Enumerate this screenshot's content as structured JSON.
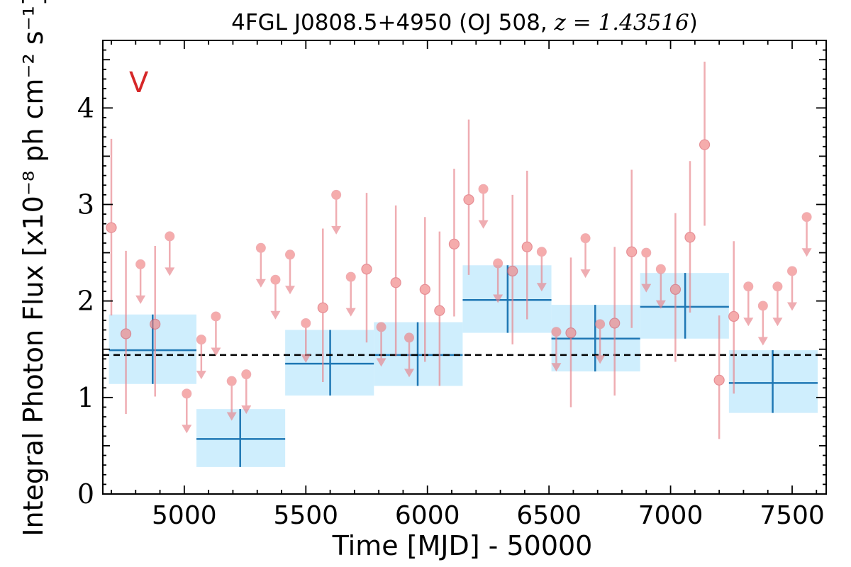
{
  "chart_data": {
    "type": "scatter",
    "title_prefix": "4FGL J0808.5+4950 (OJ 508, ",
    "title_math": "z = 1.43516",
    "title_suffix": ")",
    "xlabel": "Time [MJD] - 50000",
    "ylabel": "Integral Photon Flux [x10⁻⁸ ph cm⁻² s⁻¹]",
    "band_label": "V",
    "xlim": [
      4665,
      7640
    ],
    "ylim": [
      0,
      4.7
    ],
    "x_ticks": [
      5000,
      5500,
      6000,
      6500,
      7000,
      7500
    ],
    "y_ticks": [
      0,
      1,
      2,
      3,
      4
    ],
    "mean_flux": 1.44,
    "colors": {
      "points": "#e8828a",
      "point_fill": "#f08080",
      "binned_line": "#1f77b4",
      "binned_fill": "#cfeefd",
      "mean_line": "#000000",
      "band_label": "#d62728"
    },
    "detections": [
      {
        "x": 4700,
        "y": 2.76,
        "lo": 1.85,
        "hi": 3.68
      },
      {
        "x": 4760,
        "y": 1.66,
        "lo": 0.83,
        "hi": 2.52
      },
      {
        "x": 4880,
        "y": 1.76,
        "lo": 1.01,
        "hi": 2.57
      },
      {
        "x": 5570,
        "y": 1.93,
        "lo": 1.16,
        "hi": 2.75
      },
      {
        "x": 5750,
        "y": 2.33,
        "lo": 1.57,
        "hi": 3.12
      },
      {
        "x": 5870,
        "y": 2.19,
        "lo": 1.43,
        "hi": 2.99
      },
      {
        "x": 5990,
        "y": 2.12,
        "lo": 1.37,
        "hi": 2.87
      },
      {
        "x": 6050,
        "y": 1.9,
        "lo": 1.12,
        "hi": 2.72
      },
      {
        "x": 6110,
        "y": 2.59,
        "lo": 1.84,
        "hi": 3.37
      },
      {
        "x": 6170,
        "y": 3.05,
        "lo": 2.27,
        "hi": 3.88
      },
      {
        "x": 6350,
        "y": 2.31,
        "lo": 1.55,
        "hi": 3.1
      },
      {
        "x": 6410,
        "y": 2.56,
        "lo": 1.81,
        "hi": 3.35
      },
      {
        "x": 6590,
        "y": 1.67,
        "lo": 0.9,
        "hi": 2.45
      },
      {
        "x": 6770,
        "y": 1.77,
        "lo": 1.02,
        "hi": 2.56
      },
      {
        "x": 6840,
        "y": 2.51,
        "lo": 1.72,
        "hi": 3.36
      },
      {
        "x": 7020,
        "y": 2.12,
        "lo": 1.37,
        "hi": 2.91
      },
      {
        "x": 7080,
        "y": 2.66,
        "lo": 1.88,
        "hi": 3.45
      },
      {
        "x": 7140,
        "y": 3.62,
        "lo": 2.78,
        "hi": 4.48
      },
      {
        "x": 7200,
        "y": 1.18,
        "lo": 0.57,
        "hi": 1.85
      },
      {
        "x": 7260,
        "y": 1.84,
        "lo": 1.04,
        "hi": 2.62
      }
    ],
    "upper_limits": [
      {
        "x": 4820,
        "y": 2.38
      },
      {
        "x": 4940,
        "y": 2.67
      },
      {
        "x": 5010,
        "y": 1.04
      },
      {
        "x": 5070,
        "y": 1.6
      },
      {
        "x": 5130,
        "y": 1.84
      },
      {
        "x": 5195,
        "y": 1.17
      },
      {
        "x": 5255,
        "y": 1.24
      },
      {
        "x": 5315,
        "y": 2.55
      },
      {
        "x": 5375,
        "y": 2.22
      },
      {
        "x": 5435,
        "y": 2.48
      },
      {
        "x": 5500,
        "y": 1.77
      },
      {
        "x": 5625,
        "y": 3.1
      },
      {
        "x": 5685,
        "y": 2.25
      },
      {
        "x": 5810,
        "y": 1.73
      },
      {
        "x": 5925,
        "y": 1.62
      },
      {
        "x": 6230,
        "y": 3.16
      },
      {
        "x": 6290,
        "y": 2.39
      },
      {
        "x": 6470,
        "y": 2.51
      },
      {
        "x": 6530,
        "y": 1.68
      },
      {
        "x": 6710,
        "y": 1.76
      },
      {
        "x": 6650,
        "y": 2.65
      },
      {
        "x": 6900,
        "y": 2.5
      },
      {
        "x": 6960,
        "y": 2.33
      },
      {
        "x": 7320,
        "y": 2.15
      },
      {
        "x": 7380,
        "y": 1.95
      },
      {
        "x": 7440,
        "y": 2.15
      },
      {
        "x": 7500,
        "y": 2.31
      },
      {
        "x": 7560,
        "y": 2.87
      }
    ],
    "binned": [
      {
        "x0": 4690,
        "x1": 5050,
        "xc": 4870,
        "y": 1.49,
        "lo": 1.14,
        "hi": 1.86
      },
      {
        "x0": 5050,
        "x1": 5415,
        "xc": 5230,
        "y": 0.57,
        "lo": 0.28,
        "hi": 0.88
      },
      {
        "x0": 5415,
        "x1": 5780,
        "xc": 5600,
        "y": 1.35,
        "lo": 1.02,
        "hi": 1.7
      },
      {
        "x0": 5780,
        "x1": 6145,
        "xc": 5960,
        "y": 1.44,
        "lo": 1.12,
        "hi": 1.78
      },
      {
        "x0": 6145,
        "x1": 6510,
        "xc": 6330,
        "y": 2.01,
        "lo": 1.67,
        "hi": 2.37
      },
      {
        "x0": 6510,
        "x1": 6875,
        "xc": 6690,
        "y": 1.61,
        "lo": 1.27,
        "hi": 1.96
      },
      {
        "x0": 6875,
        "x1": 7240,
        "xc": 7060,
        "y": 1.94,
        "lo": 1.61,
        "hi": 2.29
      },
      {
        "x0": 7240,
        "x1": 7605,
        "xc": 7420,
        "y": 1.15,
        "lo": 0.84,
        "hi": 1.49
      }
    ]
  }
}
